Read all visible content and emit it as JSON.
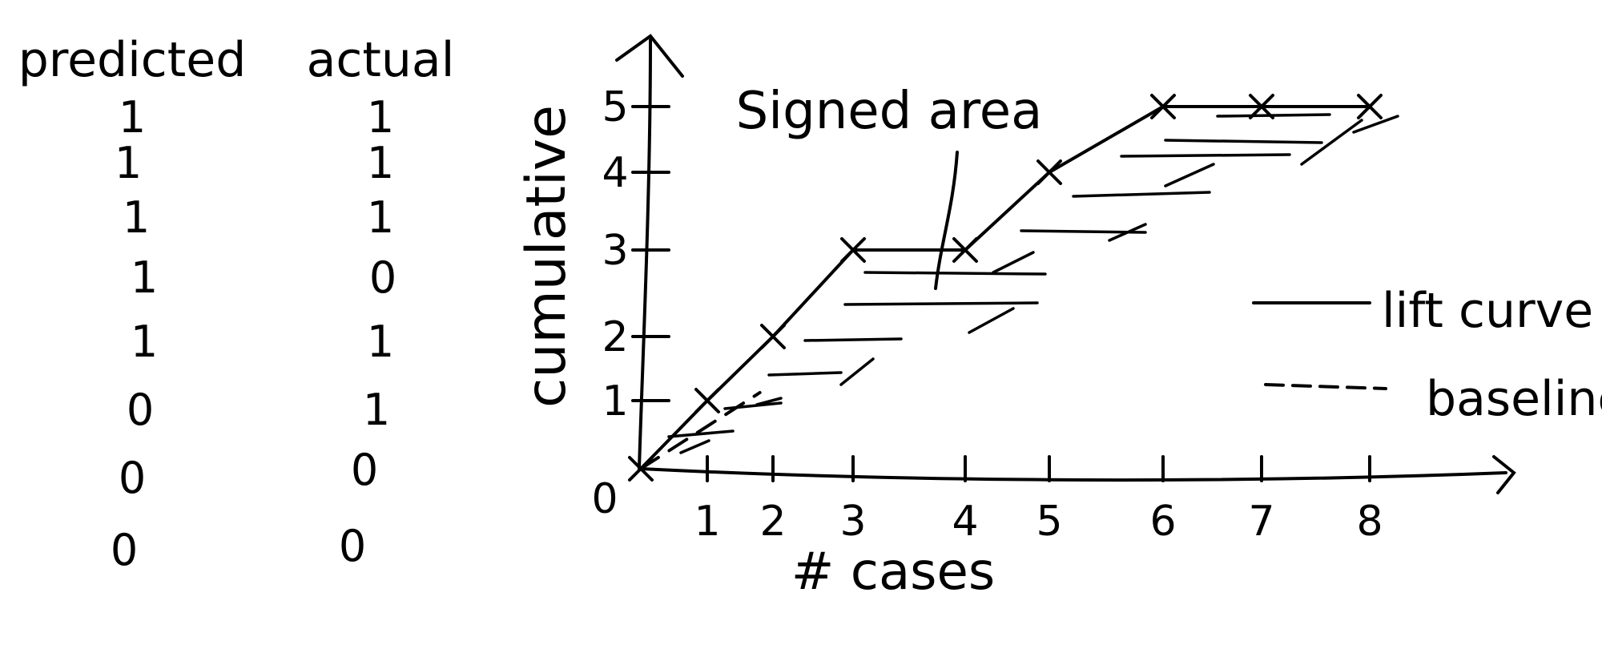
{
  "table": {
    "headers": {
      "predicted": "predicted",
      "actual": "actual"
    },
    "rows": [
      {
        "predicted": "1",
        "actual": "1"
      },
      {
        "predicted": "1",
        "actual": "1"
      },
      {
        "predicted": "1",
        "actual": "1"
      },
      {
        "predicted": "1",
        "actual": "0"
      },
      {
        "predicted": "1",
        "actual": "1"
      },
      {
        "predicted": "0",
        "actual": "1"
      },
      {
        "predicted": "0",
        "actual": "0"
      },
      {
        "predicted": "0",
        "actual": "0"
      }
    ]
  },
  "diagram": {
    "annotation": "Signed area",
    "xlabel": "# cases",
    "ylabel": "cumulative",
    "x_ticks": [
      "1",
      "2",
      "3",
      "4",
      "5",
      "6",
      "7",
      "8"
    ],
    "y_ticks": [
      "1",
      "2",
      "3",
      "4",
      "5"
    ],
    "origin_label": "0",
    "legend": [
      {
        "label": "lift curve",
        "style": "solid"
      },
      {
        "label": "baseline",
        "style": "dashed"
      }
    ],
    "lift_curve": [
      [
        0,
        0
      ],
      [
        1,
        1
      ],
      [
        2,
        2
      ],
      [
        3,
        3
      ],
      [
        4,
        3
      ],
      [
        5,
        4
      ],
      [
        6,
        5
      ],
      [
        7,
        5
      ],
      [
        8,
        5
      ]
    ],
    "baseline": [
      [
        0,
        0
      ],
      [
        8,
        5
      ]
    ],
    "stroke_color": "#000000"
  }
}
